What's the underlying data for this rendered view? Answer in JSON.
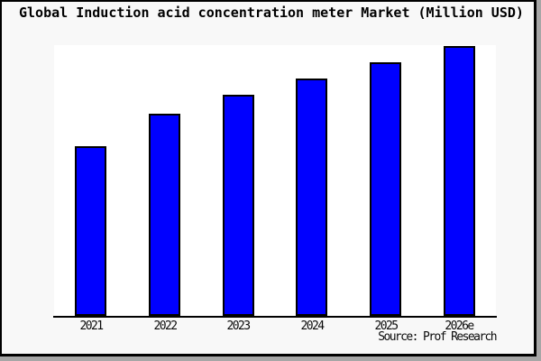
{
  "title": "Global Induction acid concentration meter Market (Million USD)",
  "source_note": "Source: Prof Research",
  "colors": {
    "canvas_background": "#f8f8f8",
    "plot_background": "#ffffff",
    "bar_fill": "#0000ff",
    "bar_border": "#000000",
    "axis_line": "#000000",
    "frame_border": "#000000",
    "edge_shadow": "#a6a6a6",
    "text": "#000000"
  },
  "chart_data": {
    "type": "bar",
    "title": "Global Induction acid concentration meter Market (Million USD)",
    "categories": [
      "2021",
      "2022",
      "2023",
      "2024",
      "2025",
      "2026e"
    ],
    "values": [
      63,
      75,
      82,
      88,
      94,
      100
    ],
    "value_scale": "relative index; no y-axis tick labels shown, tallest bar (2026e) = 100",
    "xlabel": "",
    "ylabel": "",
    "ylim": [
      0,
      100
    ],
    "grid": false,
    "legend": false,
    "y_axis_visible": false,
    "source_note": "Source: Prof Research"
  }
}
